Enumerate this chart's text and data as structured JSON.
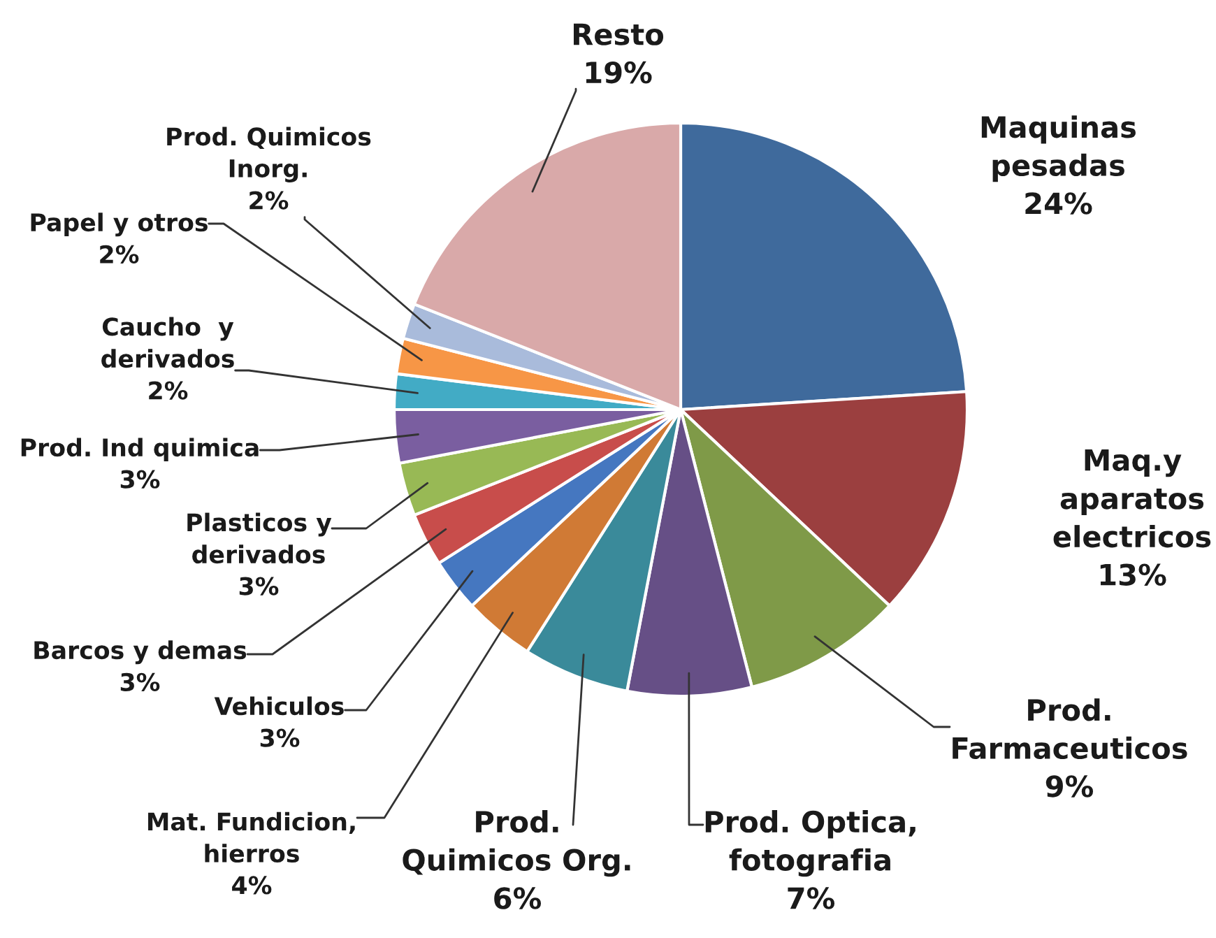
{
  "chart_data": {
    "type": "pie",
    "categories": [
      "Maquinas\npesadas",
      "Maq.y\naparatos\nelectricos",
      "Prod.\nFarmaceuticos",
      "Prod. Optica,\nfotografia",
      "Prod.\nQuimicos Org.",
      "Mat. Fundicion,\nhierros",
      "Vehiculos",
      "Barcos y demas",
      "Plasticos y\nderivados",
      "Prod. Ind quimica",
      "Caucho  y\nderivados",
      "Papel y otros",
      "Prod. Quimicos\nInorg.",
      "Resto"
    ],
    "values": [
      24,
      13,
      9,
      7,
      6,
      4,
      3,
      3,
      3,
      3,
      2,
      2,
      2,
      19
    ],
    "value_labels": [
      "24%",
      "13%",
      "9%",
      "7%",
      "6%",
      "4%",
      "3%",
      "3%",
      "3%",
      "3%",
      "2%",
      "2%",
      "2%",
      "19%"
    ],
    "colors": [
      "#3f6a9c",
      "#9b3f3f",
      "#7f9a48",
      "#664f86",
      "#3a8a9a",
      "#d07a35",
      "#4577c0",
      "#c84d4b",
      "#98b955",
      "#7a5ea0",
      "#42abc5",
      "#f79646",
      "#a9bbdb",
      "#d9a9a9"
    ]
  }
}
